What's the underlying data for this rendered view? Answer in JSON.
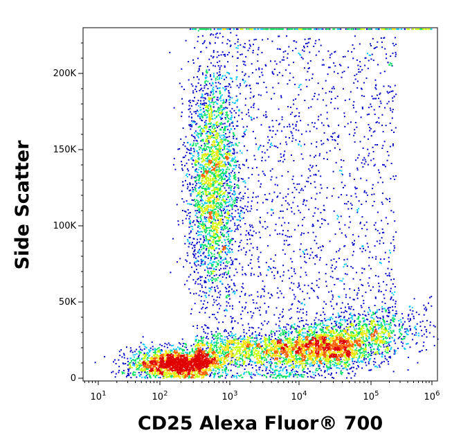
{
  "chart_data": {
    "type": "scatter",
    "plot_style": "flow cytometry density dot plot",
    "xlabel": "CD25 Alexa Fluor® 700",
    "ylabel": "Side Scatter",
    "x_scale": "log",
    "xlim": [
      7,
      1200000
    ],
    "x_ticks": [
      {
        "base": "10",
        "exp": "1"
      },
      {
        "base": "10",
        "exp": "2"
      },
      {
        "base": "10",
        "exp": "3"
      },
      {
        "base": "10",
        "exp": "4"
      },
      {
        "base": "10",
        "exp": "5"
      },
      {
        "base": "10",
        "exp": "6"
      }
    ],
    "y_scale": "linear",
    "ylim": [
      -2000,
      230000
    ],
    "y_ticks": [
      "0",
      "50K",
      "100K",
      "150K",
      "200K"
    ],
    "density_colors": [
      "#0000c8",
      "#00c8ff",
      "#00e060",
      "#c8ff00",
      "#ffe000",
      "#ff6000",
      "#e00000"
    ],
    "populations": [
      {
        "description": "low CD25, low SSC",
        "x_center": 180,
        "y_center": 10000,
        "x_spread_decades": 0.35,
        "y_spread": 5000
      },
      {
        "description": "low CD25, high SSC granulocytes",
        "x_center": 550,
        "y_center": 130000,
        "x_spread_decades": 0.18,
        "y_spread": 40000
      },
      {
        "description": "CD25 positive, low SSC",
        "x_center": 30000,
        "y_center": 22000,
        "x_spread_decades": 0.6,
        "y_spread": 9000
      }
    ]
  }
}
